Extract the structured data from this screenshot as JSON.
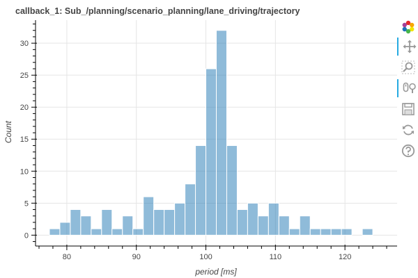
{
  "chart_data": {
    "type": "bar",
    "title": "callback_1: Sub_/planning/scenario_planning/lane_driving/trajectory",
    "xlabel": "period [ms]",
    "ylabel": "Count",
    "xlim": [
      75.5,
      127.5
    ],
    "ylim": [
      -1.7,
      33.6
    ],
    "grid": true,
    "x_ticks": [
      80,
      90,
      100,
      110,
      120
    ],
    "y_ticks": [
      0,
      5,
      10,
      15,
      20,
      25,
      30
    ],
    "bar_color": "#1f77b4",
    "bin_width": 1.5,
    "bins": [
      {
        "x": 78.25,
        "count": 1
      },
      {
        "x": 79.75,
        "count": 2
      },
      {
        "x": 81.25,
        "count": 4
      },
      {
        "x": 82.75,
        "count": 3
      },
      {
        "x": 84.25,
        "count": 1
      },
      {
        "x": 85.75,
        "count": 4
      },
      {
        "x": 87.25,
        "count": 1
      },
      {
        "x": 88.75,
        "count": 3
      },
      {
        "x": 90.25,
        "count": 1
      },
      {
        "x": 91.75,
        "count": 6
      },
      {
        "x": 93.25,
        "count": 4
      },
      {
        "x": 94.75,
        "count": 4
      },
      {
        "x": 96.25,
        "count": 5
      },
      {
        "x": 97.75,
        "count": 8
      },
      {
        "x": 99.25,
        "count": 14
      },
      {
        "x": 100.75,
        "count": 26
      },
      {
        "x": 102.25,
        "count": 32
      },
      {
        "x": 103.75,
        "count": 14
      },
      {
        "x": 105.25,
        "count": 4
      },
      {
        "x": 106.75,
        "count": 5
      },
      {
        "x": 108.25,
        "count": 3
      },
      {
        "x": 109.75,
        "count": 5
      },
      {
        "x": 111.25,
        "count": 3
      },
      {
        "x": 112.75,
        "count": 1
      },
      {
        "x": 114.25,
        "count": 3
      },
      {
        "x": 115.75,
        "count": 1
      },
      {
        "x": 117.25,
        "count": 1
      },
      {
        "x": 118.75,
        "count": 1
      },
      {
        "x": 120.25,
        "count": 1
      },
      {
        "x": 123.25,
        "count": 1
      }
    ]
  },
  "toolbar": {
    "tools": [
      {
        "name": "bokeh-logo-icon",
        "active": false
      },
      {
        "name": "pan-icon",
        "active": true
      },
      {
        "name": "box-zoom-icon",
        "active": false
      },
      {
        "name": "wheel-zoom-icon",
        "active": true
      },
      {
        "name": "save-icon",
        "active": false
      },
      {
        "name": "reset-icon",
        "active": false
      },
      {
        "name": "help-icon",
        "active": false
      }
    ]
  }
}
